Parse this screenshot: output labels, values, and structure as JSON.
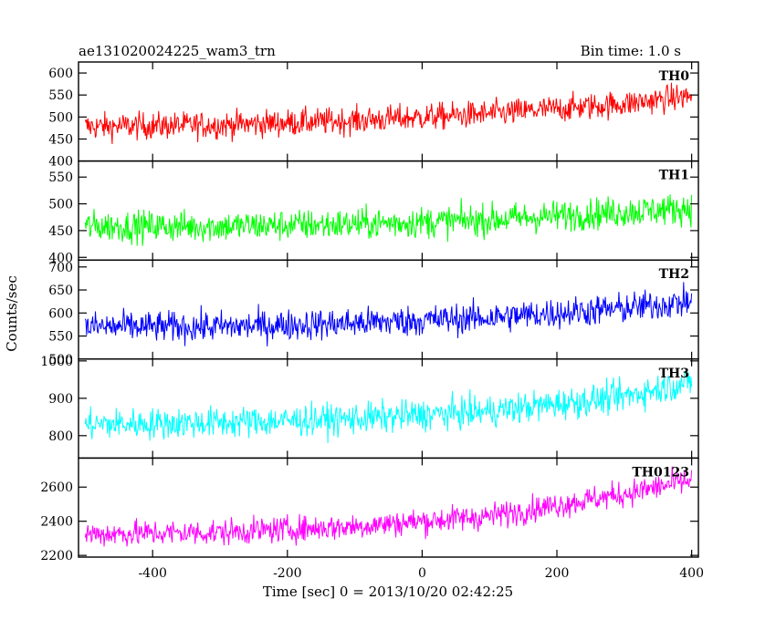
{
  "chart_data": {
    "type": "line",
    "title": "ae131020024225_wam3_trn",
    "bin_time": "Bin time: 1.0 s",
    "xlabel": "Time [sec] 0 = 2013/10/20 02:42:25",
    "ylabel": "Counts/sec",
    "xlim": [
      -510,
      410
    ],
    "x_ticks": [
      -400,
      -200,
      0,
      200,
      400
    ],
    "x_range": [
      -500,
      400
    ],
    "grid": false,
    "panels": [
      {
        "name": "TH0",
        "color": "#ff0000",
        "ylim": [
          400,
          625
        ],
        "y_ticks": [
          400,
          450,
          500,
          550,
          600
        ],
        "trend": [
          [
            -500,
            478
          ],
          [
            -300,
            482
          ],
          [
            -100,
            492
          ],
          [
            100,
            507
          ],
          [
            300,
            530
          ],
          [
            400,
            548
          ]
        ],
        "noise": 22
      },
      {
        "name": "TH1",
        "color": "#00ff00",
        "ylim": [
          395,
          580
        ],
        "y_ticks": [
          400,
          450,
          500,
          550
        ],
        "trend": [
          [
            -500,
            458
          ],
          [
            -300,
            458
          ],
          [
            -100,
            462
          ],
          [
            100,
            470
          ],
          [
            300,
            485
          ],
          [
            400,
            492
          ]
        ],
        "noise": 21
      },
      {
        "name": "TH2",
        "color": "#0000ff",
        "ylim": [
          500,
          715
        ],
        "y_ticks": [
          500,
          550,
          600,
          650,
          700
        ],
        "trend": [
          [
            -500,
            570
          ],
          [
            -300,
            570
          ],
          [
            -100,
            578
          ],
          [
            100,
            590
          ],
          [
            300,
            610
          ],
          [
            400,
            625
          ]
        ],
        "noise": 24
      },
      {
        "name": "TH3",
        "color": "#00ffff",
        "ylim": [
          740,
          1005
        ],
        "y_ticks": [
          800,
          900,
          1000
        ],
        "trend": [
          [
            -500,
            830
          ],
          [
            -300,
            835
          ],
          [
            -100,
            845
          ],
          [
            100,
            865
          ],
          [
            300,
            905
          ],
          [
            400,
            945
          ]
        ],
        "noise": 30
      },
      {
        "name": "TH0123",
        "color": "#ff00ff",
        "ylim": [
          2190,
          2770
        ],
        "y_ticks": [
          2200,
          2400,
          2600
        ],
        "trend": [
          [
            -500,
            2325
          ],
          [
            -300,
            2335
          ],
          [
            -100,
            2370
          ],
          [
            100,
            2430
          ],
          [
            300,
            2560
          ],
          [
            400,
            2640
          ]
        ],
        "noise": 55
      }
    ]
  }
}
